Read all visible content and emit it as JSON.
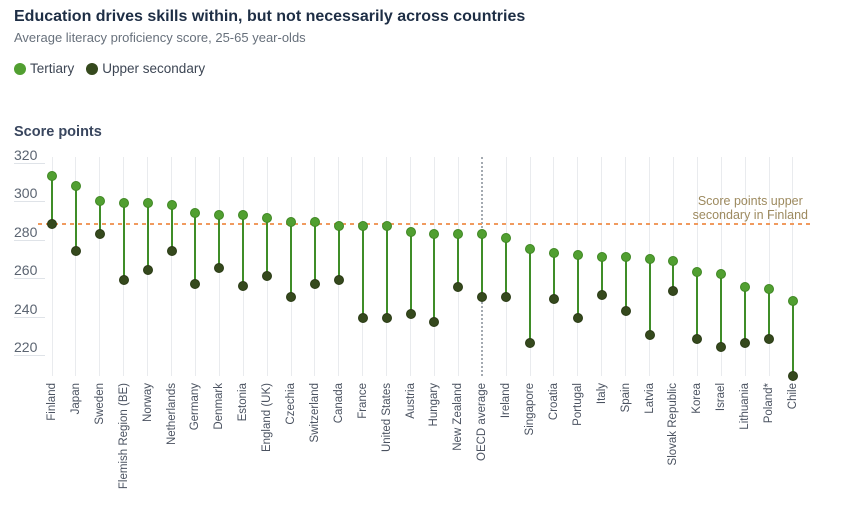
{
  "header": {
    "title": "Education drives skills within, but not necessarily across countries",
    "subtitle": "Average literacy proficiency score, 25-65 year-olds"
  },
  "legend": [
    {
      "label": "Tertiary",
      "color": "#519f31"
    },
    {
      "label": "Upper secondary",
      "color": "#35491d"
    }
  ],
  "annotation": {
    "line1": "Score points upper",
    "line2": "secondary in Finland"
  },
  "colors": {
    "tertiary": "#519f31",
    "tertiary_border": "#3f8723",
    "upper_secondary": "#35491d",
    "upper_secondary_border": "#2a3b15",
    "connector": "#3f8d28",
    "reference_line": "#f09a5e",
    "annotation_text": "#9d8a5f",
    "gridline": "#e9ebee",
    "highlight_gridline": "#a4aab1"
  },
  "chart_data": {
    "type": "scatter",
    "subtype": "dumbbell-dot-plot",
    "title": "Education drives skills within, but not necessarily across countries",
    "subtitle": "Average literacy proficiency score, 25-65 year-olds",
    "xlabel": "",
    "ylabel": "Score points",
    "yticks": [
      320,
      300,
      280,
      260,
      240,
      220
    ],
    "ylim": [
      200,
      325
    ],
    "grid": "vertical-only",
    "legend_position": "top-left",
    "highlight_category": "OECD average",
    "reference_line": {
      "value": 284,
      "label": "Score points upper secondary in Finland",
      "style": "dashed",
      "color": "#f09a5e"
    },
    "categories": [
      "Finland",
      "Japan",
      "Sweden",
      "Flemish Region (BE)",
      "Norway",
      "Netherlands",
      "Germany",
      "Denmark",
      "Estonia",
      "England (UK)",
      "Czechia",
      "Switzerland",
      "Canada",
      "France",
      "United States",
      "Austria",
      "Hungary",
      "New Zealand",
      "OECD average",
      "Ireland",
      "Singapore",
      "Croatia",
      "Portugal",
      "Italy",
      "Spain",
      "Latvia",
      "Slovak Republic",
      "Korea",
      "Israel",
      "Lithuania",
      "Poland*",
      "Chile"
    ],
    "series": [
      {
        "name": "Tertiary",
        "color": "#519f31",
        "values": [
          309,
          304,
          296,
          295,
          295,
          294,
          290,
          289,
          289,
          287,
          285,
          285,
          283,
          283,
          283,
          280,
          279,
          279,
          279,
          277,
          271,
          269,
          268,
          267,
          267,
          266,
          265,
          259,
          258,
          251,
          250,
          244
        ]
      },
      {
        "name": "Upper secondary",
        "color": "#35491d",
        "values": [
          284,
          270,
          279,
          255,
          260,
          270,
          253,
          261,
          252,
          257,
          246,
          253,
          255,
          235,
          235,
          237,
          233,
          251,
          246,
          246,
          222,
          245,
          235,
          247,
          239,
          226,
          249,
          224,
          220,
          222,
          224,
          205
        ]
      }
    ]
  }
}
